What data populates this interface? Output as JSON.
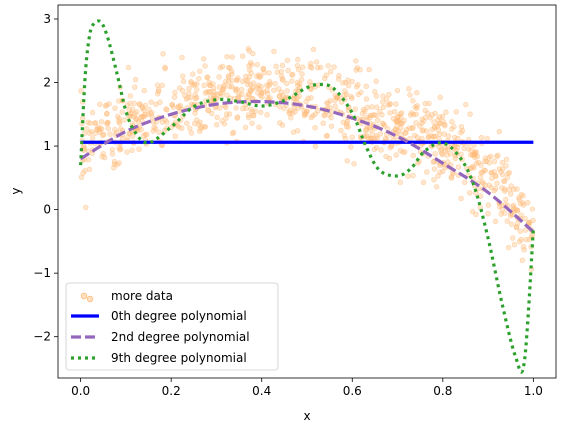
{
  "chart_data": {
    "type": "scatter",
    "title": "",
    "xlabel": "x",
    "ylabel": "y",
    "xlim": [
      -0.05,
      1.05
    ],
    "ylim": [
      -2.65,
      3.22
    ],
    "x_ticks": [
      0.0,
      0.2,
      0.4,
      0.6,
      0.8,
      1.0
    ],
    "x_tick_labels": [
      "0.0",
      "0.2",
      "0.4",
      "0.6",
      "0.8",
      "1.0"
    ],
    "y_ticks": [
      -2,
      -1,
      0,
      1,
      2,
      3
    ],
    "y_tick_labels": [
      "−2",
      "−1",
      "0",
      "1",
      "2",
      "3"
    ],
    "grid": false,
    "legend_position": "lower-left",
    "legend": [
      "more data",
      "0th degree polynomial",
      "2nd degree polynomial",
      "9th degree polynomial"
    ],
    "series": [
      {
        "name": "more data",
        "kind": "scatter",
        "color": "#ffbb78",
        "n_points": 1000,
        "noise_sd": 0.3,
        "trend": {
          "x": [
            0.0,
            0.1,
            0.2,
            0.3,
            0.4,
            0.5,
            0.6,
            0.7,
            0.8,
            0.9,
            1.0
          ],
          "y": [
            1.05,
            1.3,
            1.55,
            1.75,
            1.85,
            1.8,
            1.6,
            1.3,
            1.05,
            0.6,
            -0.35
          ]
        }
      },
      {
        "name": "0th degree polynomial",
        "kind": "line",
        "style": "solid",
        "color": "#0000ff",
        "x": [
          0.0,
          1.0
        ],
        "y": [
          1.06,
          1.06
        ]
      },
      {
        "name": "2nd degree polynomial",
        "kind": "line",
        "style": "dashed",
        "color": "#9467bd",
        "x": [
          0.0,
          0.1,
          0.2,
          0.3,
          0.4,
          0.5,
          0.6,
          0.7,
          0.8,
          0.9,
          1.0
        ],
        "y": [
          0.8,
          1.23,
          1.5,
          1.66,
          1.7,
          1.63,
          1.44,
          1.15,
          0.73,
          0.27,
          -0.35
        ]
      },
      {
        "name": "9th degree polynomial",
        "kind": "line",
        "style": "dotted",
        "color": "#2ca02c",
        "x": [
          0.0,
          0.01,
          0.02,
          0.03,
          0.045,
          0.06,
          0.08,
          0.1,
          0.12,
          0.15,
          0.2,
          0.25,
          0.3,
          0.35,
          0.4,
          0.45,
          0.5,
          0.53,
          0.56,
          0.6,
          0.63,
          0.66,
          0.7,
          0.73,
          0.76,
          0.8,
          0.84,
          0.87,
          0.9,
          0.93,
          0.96,
          0.98,
          1.0
        ],
        "y": [
          0.7,
          2.1,
          2.75,
          2.93,
          2.95,
          2.7,
          2.15,
          1.55,
          1.22,
          1.05,
          1.3,
          1.62,
          1.73,
          1.7,
          1.63,
          1.72,
          1.92,
          1.97,
          1.9,
          1.52,
          1.0,
          0.62,
          0.53,
          0.65,
          0.92,
          1.05,
          0.8,
          0.35,
          -0.45,
          -1.45,
          -2.3,
          -2.4,
          -0.3
        ]
      }
    ]
  }
}
